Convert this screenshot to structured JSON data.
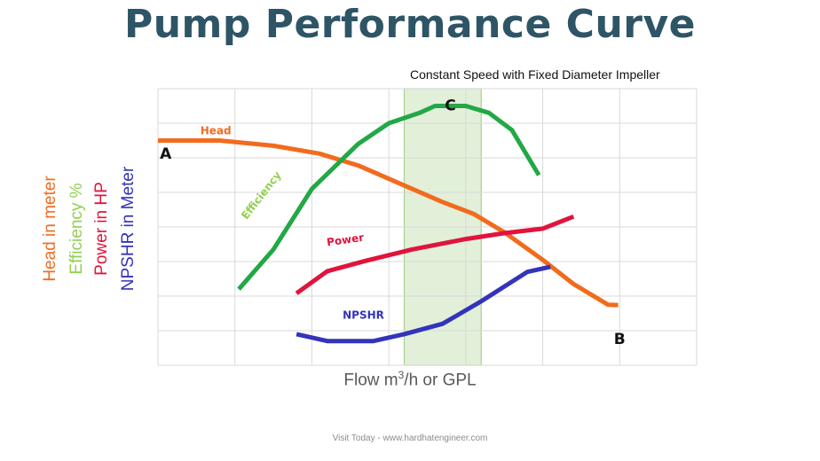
{
  "chart_data": {
    "type": "line",
    "title": "Pump Performance Curve",
    "subtitle": "Constant Speed with Fixed Diameter Impeller",
    "xlabel": "Flow m3/h or GPL",
    "ylabels": [
      {
        "text": "Head in meter",
        "color": "#f26b1d"
      },
      {
        "text": "Efficiency %",
        "color": "#92d050"
      },
      {
        "text": "Power in HP",
        "color": "#e0143c"
      },
      {
        "text": "NPSHR in Meter",
        "color": "#3333bb"
      }
    ],
    "xlim": [
      0,
      7
    ],
    "ylim": [
      0,
      8
    ],
    "grid": true,
    "highlight": {
      "x_start": 3.2,
      "x_end": 4.2,
      "color": "#e2f0d9",
      "edge": "#a9d18e"
    },
    "series": [
      {
        "name": "Head",
        "color": "#f26b1d",
        "x": [
          0,
          0.8,
          1.5,
          2.1,
          2.6,
          3.2,
          3.7,
          4.1,
          4.5,
          5.0,
          5.4,
          5.85,
          5.98
        ],
        "y": [
          6.5,
          6.5,
          6.35,
          6.12,
          5.78,
          5.2,
          4.72,
          4.38,
          3.85,
          3.05,
          2.35,
          1.75,
          1.74
        ]
      },
      {
        "name": "Efficiency",
        "color": "#22a846",
        "x": [
          1.05,
          1.5,
          2.0,
          2.6,
          3.0,
          3.4,
          3.6,
          4.0,
          4.3,
          4.6,
          4.95
        ],
        "y": [
          2.2,
          3.35,
          5.1,
          6.4,
          7.0,
          7.3,
          7.5,
          7.5,
          7.3,
          6.8,
          5.5
        ]
      },
      {
        "name": "Power",
        "color": "#e0143c",
        "x": [
          1.8,
          2.2,
          2.7,
          3.3,
          4.0,
          4.5,
          5.0,
          5.4
        ],
        "y": [
          2.08,
          2.72,
          3.02,
          3.35,
          3.65,
          3.82,
          3.95,
          4.3
        ]
      },
      {
        "name": "NPSHR",
        "color": "#3333bb",
        "x": [
          1.8,
          2.2,
          2.8,
          3.2,
          3.7,
          4.2,
          4.8,
          5.1
        ],
        "y": [
          0.9,
          0.7,
          0.7,
          0.9,
          1.2,
          1.85,
          2.7,
          2.85
        ]
      }
    ],
    "annotations": [
      {
        "text": "A",
        "x": 0.1,
        "y": 6.1
      },
      {
        "text": "B",
        "x": 6.0,
        "y": 0.75
      },
      {
        "text": "C",
        "x": 3.8,
        "y": 7.5
      }
    ],
    "source_note": "Visit Today - www.hardhatengineer.com"
  }
}
